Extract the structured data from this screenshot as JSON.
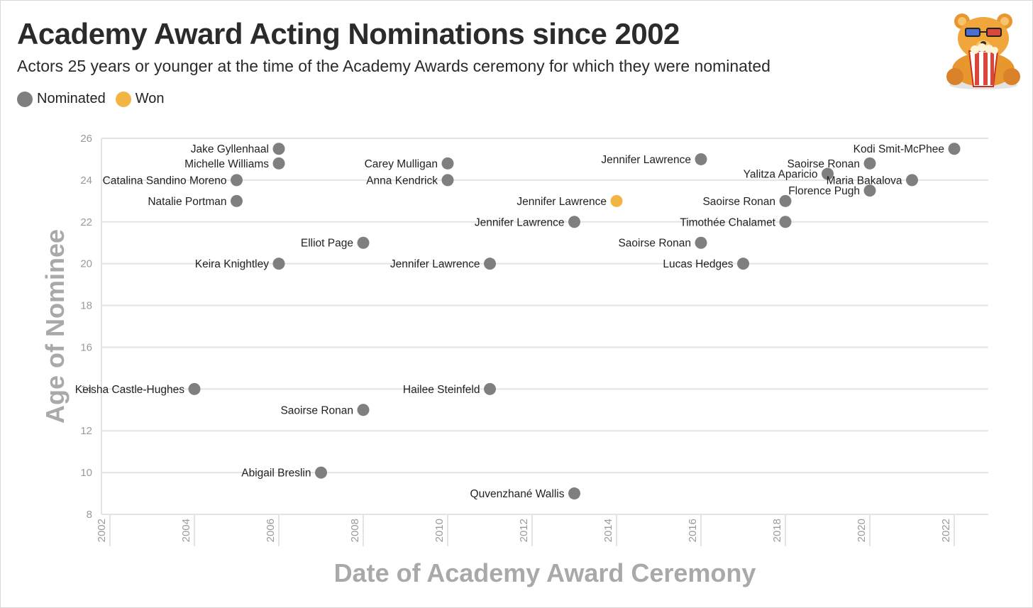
{
  "title": "Academy Award Acting Nominations since 2002",
  "subtitle": "Actors 25 years or younger at the time of the Academy Awards ceremony for which they were nominated",
  "legend": [
    {
      "label": "Nominated",
      "color": "#7f7f7f"
    },
    {
      "label": "Won",
      "color": "#f2b544"
    }
  ],
  "logo_icon": "bear-popcorn-icon",
  "chart_data": {
    "type": "scatter",
    "xlabel": "Date of Academy Award Ceremony",
    "ylabel": "Age of Nominee",
    "xlim": [
      2002,
      2023
    ],
    "ylim": [
      8,
      26
    ],
    "xticks": [
      2002,
      2004,
      2006,
      2008,
      2010,
      2012,
      2014,
      2016,
      2018,
      2020,
      2022
    ],
    "yticks": [
      8,
      10,
      12,
      14,
      16,
      18,
      20,
      22,
      24,
      26
    ],
    "grid": "horizontal",
    "legend_position": "top-left",
    "series": [
      {
        "name": "Nominated",
        "color": "#7f7f7f"
      },
      {
        "name": "Won",
        "color": "#f2b544"
      }
    ],
    "points": [
      {
        "label": "Keisha Castle-Hughes",
        "x": 2004,
        "y": 14,
        "status": "Nominated"
      },
      {
        "label": "Catalina Sandino Moreno",
        "x": 2005,
        "y": 24,
        "status": "Nominated"
      },
      {
        "label": "Natalie Portman",
        "x": 2005,
        "y": 23,
        "status": "Nominated"
      },
      {
        "label": "Jake Gyllenhaal",
        "x": 2006,
        "y": 25.5,
        "status": "Nominated"
      },
      {
        "label": "Michelle Williams",
        "x": 2006,
        "y": 24.8,
        "status": "Nominated"
      },
      {
        "label": "Keira Knightley",
        "x": 2006,
        "y": 20,
        "status": "Nominated"
      },
      {
        "label": "Abigail Breslin",
        "x": 2007,
        "y": 10,
        "status": "Nominated"
      },
      {
        "label": "Elliot Page",
        "x": 2008,
        "y": 21,
        "status": "Nominated"
      },
      {
        "label": "Saoirse Ronan",
        "x": 2008,
        "y": 13,
        "status": "Nominated"
      },
      {
        "label": "Carey Mulligan",
        "x": 2010,
        "y": 24.8,
        "status": "Nominated"
      },
      {
        "label": "Anna Kendrick",
        "x": 2010,
        "y": 24,
        "status": "Nominated"
      },
      {
        "label": "Jennifer Lawrence",
        "x": 2011,
        "y": 20,
        "status": "Nominated"
      },
      {
        "label": "Hailee Steinfeld",
        "x": 2011,
        "y": 14,
        "status": "Nominated"
      },
      {
        "label": "Jennifer Lawrence",
        "x": 2013,
        "y": 22,
        "status": "Nominated"
      },
      {
        "label": "Quvenzhané Wallis",
        "x": 2013,
        "y": 9,
        "status": "Nominated"
      },
      {
        "label": "Jennifer Lawrence",
        "x": 2014,
        "y": 23,
        "status": "Won"
      },
      {
        "label": "Jennifer Lawrence",
        "x": 2016,
        "y": 25,
        "status": "Nominated"
      },
      {
        "label": "Saoirse Ronan",
        "x": 2016,
        "y": 21,
        "status": "Nominated"
      },
      {
        "label": "Lucas Hedges",
        "x": 2017,
        "y": 20,
        "status": "Nominated"
      },
      {
        "label": "Saoirse Ronan",
        "x": 2018,
        "y": 23,
        "status": "Nominated"
      },
      {
        "label": "Timothée Chalamet",
        "x": 2018,
        "y": 22,
        "status": "Nominated"
      },
      {
        "label": "Yalitza Aparicio",
        "x": 2019,
        "y": 24.3,
        "status": "Nominated"
      },
      {
        "label": "Saoirse Ronan",
        "x": 2020,
        "y": 24.8,
        "status": "Nominated"
      },
      {
        "label": "Florence Pugh",
        "x": 2020,
        "y": 23.5,
        "status": "Nominated"
      },
      {
        "label": "Maria Bakalova",
        "x": 2021,
        "y": 24,
        "status": "Nominated"
      },
      {
        "label": "Kodi Smit-McPhee",
        "x": 2022,
        "y": 25.5,
        "status": "Nominated"
      }
    ]
  }
}
